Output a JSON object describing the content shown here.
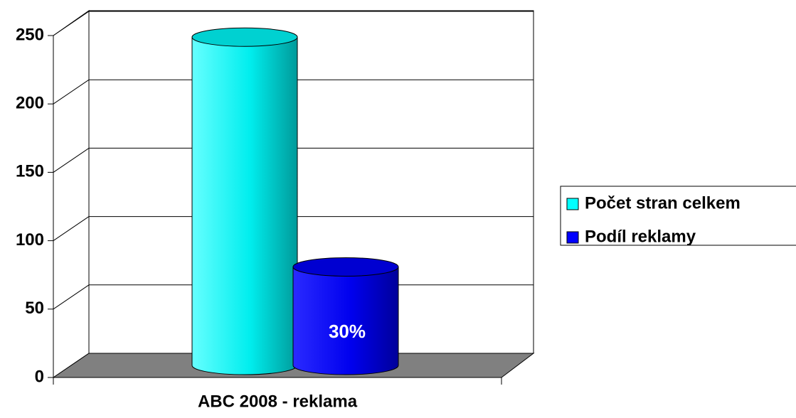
{
  "chart_data": {
    "type": "bar3d-cylinder",
    "categories": [
      "ABC 2008 - reklama"
    ],
    "series": [
      {
        "name": "Počet stran celkem",
        "color": "#00ffff",
        "values": [
          240
        ]
      },
      {
        "name": "Podíl reklamy",
        "color": "#0000ff",
        "values": [
          72
        ]
      }
    ],
    "annotation": "30%",
    "ylim": [
      0,
      250
    ],
    "yticks": [
      0,
      50,
      100,
      150,
      200,
      250
    ],
    "grid": true,
    "legend": "right"
  }
}
